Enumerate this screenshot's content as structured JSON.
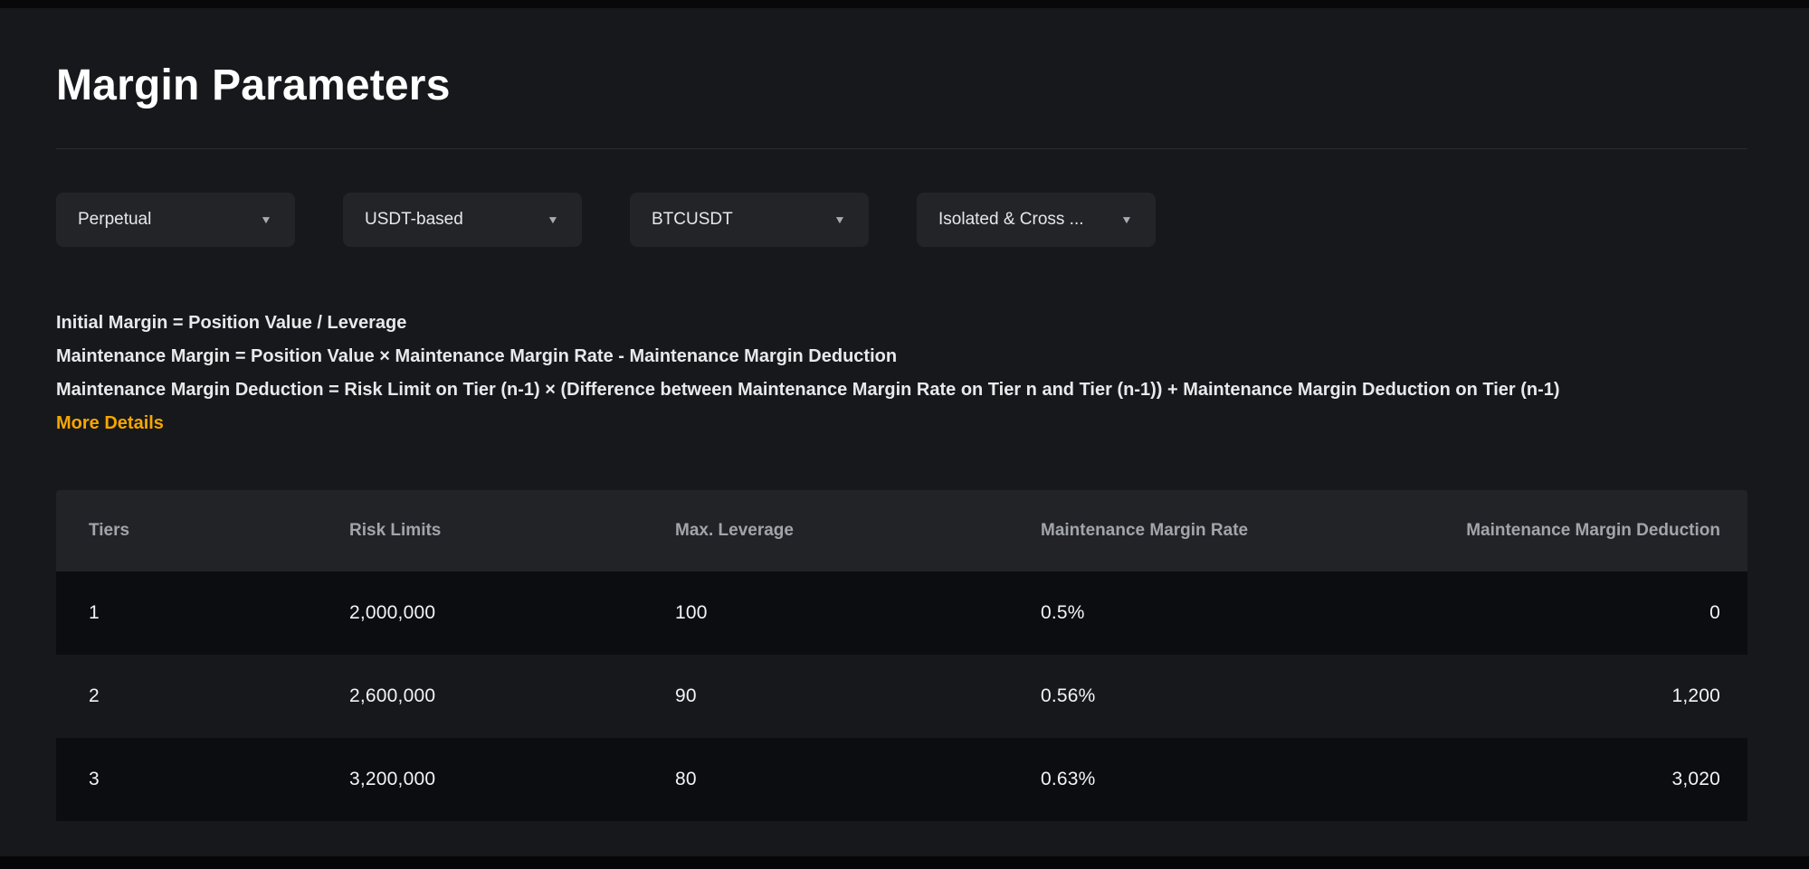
{
  "header": {
    "title": "Margin Parameters"
  },
  "filters": {
    "contract_type": "Perpetual",
    "margin_currency": "USDT-based",
    "symbol": "BTCUSDT",
    "margin_mode": "Isolated & Cross ..."
  },
  "formulas": {
    "initial_margin": "Initial Margin = Position Value / Leverage",
    "maintenance_margin": "Maintenance Margin = Position Value × Maintenance Margin Rate - Maintenance Margin Deduction",
    "maintenance_margin_deduction": "Maintenance Margin Deduction = Risk Limit on Tier (n-1) × (Difference between Maintenance Margin Rate on Tier n and Tier (n-1)) + Maintenance Margin Deduction on Tier (n-1)",
    "more_details": "More Details"
  },
  "table": {
    "columns": [
      "Tiers",
      "Risk Limits",
      "Max. Leverage",
      "Maintenance Margin Rate",
      "Maintenance Margin Deduction"
    ],
    "rows": [
      {
        "tier": "1",
        "risk_limit": "2,000,000",
        "max_leverage": "100",
        "mm_rate": "0.5%",
        "mm_deduction": "0"
      },
      {
        "tier": "2",
        "risk_limit": "2,600,000",
        "max_leverage": "90",
        "mm_rate": "0.56%",
        "mm_deduction": "1,200"
      },
      {
        "tier": "3",
        "risk_limit": "3,200,000",
        "max_leverage": "80",
        "mm_rate": "0.63%",
        "mm_deduction": "3,020"
      }
    ]
  },
  "icons": {
    "dropdown_caret": "▼"
  },
  "colors": {
    "accent": "#f7a600",
    "page_bg": "#17181c",
    "dropdown_bg": "#232428",
    "table_header_bg": "#222327",
    "row_stripe_bg": "#0c0d10"
  }
}
